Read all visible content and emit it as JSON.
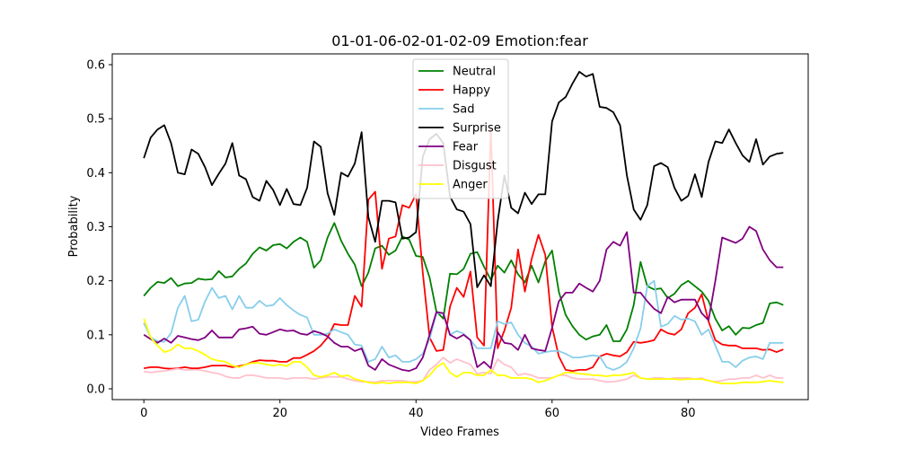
{
  "chart_data": {
    "type": "line",
    "title": "01-01-06-02-01-02-09 Emotion:fear",
    "xlabel": "Video Frames",
    "ylabel": "Probability",
    "xlim": [
      -4.65,
      97.65
    ],
    "ylim": [
      -0.02,
      0.62
    ],
    "xticks": [
      0,
      20,
      40,
      60,
      80
    ],
    "yticks": [
      0.0,
      0.1,
      0.2,
      0.3,
      0.4,
      0.5,
      0.6
    ],
    "ytick_labels": [
      "0.0",
      "0.1",
      "0.2",
      "0.3",
      "0.4",
      "0.5",
      "0.6"
    ],
    "grid": false,
    "legend_position": "top-center",
    "series": [
      {
        "name": "Neutral",
        "color": "#008000",
        "values": [
          0.172,
          0.187,
          0.198,
          0.196,
          0.205,
          0.19,
          0.195,
          0.196,
          0.204,
          0.202,
          0.203,
          0.218,
          0.206,
          0.208,
          0.222,
          0.232,
          0.25,
          0.262,
          0.256,
          0.266,
          0.268,
          0.26,
          0.272,
          0.28,
          0.272,
          0.224,
          0.238,
          0.28,
          0.307,
          0.274,
          0.25,
          0.23,
          0.19,
          0.215,
          0.26,
          0.265,
          0.248,
          0.256,
          0.282,
          0.276,
          0.246,
          0.244,
          0.206,
          0.143,
          0.13,
          0.213,
          0.212,
          0.222,
          0.25,
          0.253,
          0.226,
          0.202,
          0.228,
          0.215,
          0.238,
          0.212,
          0.197,
          0.228,
          0.197,
          0.236,
          0.256,
          0.18,
          0.137,
          0.116,
          0.1,
          0.091,
          0.097,
          0.1,
          0.118,
          0.088,
          0.088,
          0.11,
          0.155,
          0.235,
          0.19,
          0.184,
          0.186,
          0.168,
          0.176,
          0.192,
          0.2,
          0.19,
          0.18,
          0.163,
          0.13,
          0.108,
          0.116,
          0.1,
          0.113,
          0.112,
          0.118,
          0.122,
          0.158,
          0.16,
          0.155
        ]
      },
      {
        "name": "Happy",
        "color": "#ff0000",
        "values": [
          0.038,
          0.04,
          0.04,
          0.038,
          0.037,
          0.038,
          0.04,
          0.038,
          0.038,
          0.04,
          0.043,
          0.043,
          0.043,
          0.04,
          0.042,
          0.045,
          0.05,
          0.053,
          0.052,
          0.052,
          0.05,
          0.05,
          0.057,
          0.057,
          0.063,
          0.07,
          0.08,
          0.095,
          0.12,
          0.118,
          0.118,
          0.172,
          0.152,
          0.35,
          0.365,
          0.222,
          0.278,
          0.282,
          0.34,
          0.335,
          0.36,
          0.215,
          0.095,
          0.07,
          0.072,
          0.152,
          0.187,
          0.17,
          0.217,
          0.095,
          0.08,
          0.482,
          0.075,
          0.108,
          0.15,
          0.258,
          0.18,
          0.24,
          0.285,
          0.248,
          0.115,
          0.06,
          0.035,
          0.033,
          0.035,
          0.035,
          0.04,
          0.06,
          0.065,
          0.062,
          0.06,
          0.068,
          0.087,
          0.085,
          0.087,
          0.09,
          0.11,
          0.103,
          0.1,
          0.11,
          0.14,
          0.15,
          0.175,
          0.125,
          0.09,
          0.082,
          0.08,
          0.08,
          0.075,
          0.075,
          0.075,
          0.072,
          0.073,
          0.068,
          0.073
        ]
      },
      {
        "name": "Sad",
        "color": "#87ceeb",
        "values": [
          0.122,
          0.095,
          0.088,
          0.087,
          0.103,
          0.15,
          0.172,
          0.125,
          0.128,
          0.162,
          0.187,
          0.168,
          0.172,
          0.147,
          0.172,
          0.15,
          0.15,
          0.163,
          0.153,
          0.155,
          0.168,
          0.155,
          0.145,
          0.137,
          0.132,
          0.1,
          0.1,
          0.102,
          0.11,
          0.105,
          0.1,
          0.082,
          0.08,
          0.05,
          0.055,
          0.078,
          0.058,
          0.062,
          0.05,
          0.05,
          0.055,
          0.065,
          0.092,
          0.14,
          0.14,
          0.1,
          0.107,
          0.102,
          0.09,
          0.075,
          0.075,
          0.075,
          0.125,
          0.12,
          0.123,
          0.1,
          0.085,
          0.078,
          0.065,
          0.068,
          0.07,
          0.07,
          0.065,
          0.058,
          0.058,
          0.06,
          0.062,
          0.06,
          0.04,
          0.035,
          0.04,
          0.05,
          0.075,
          0.112,
          0.19,
          0.2,
          0.115,
          0.12,
          0.135,
          0.128,
          0.13,
          0.125,
          0.1,
          0.11,
          0.08,
          0.05,
          0.05,
          0.04,
          0.052,
          0.058,
          0.06,
          0.055,
          0.085,
          0.085,
          0.085
        ]
      },
      {
        "name": "Surprise",
        "color": "#000000",
        "values": [
          0.427,
          0.465,
          0.48,
          0.488,
          0.455,
          0.4,
          0.397,
          0.443,
          0.435,
          0.41,
          0.377,
          0.398,
          0.417,
          0.455,
          0.395,
          0.388,
          0.355,
          0.348,
          0.385,
          0.368,
          0.34,
          0.37,
          0.342,
          0.34,
          0.372,
          0.458,
          0.448,
          0.362,
          0.322,
          0.4,
          0.393,
          0.417,
          0.475,
          0.318,
          0.272,
          0.348,
          0.348,
          0.345,
          0.278,
          0.28,
          0.29,
          0.43,
          0.462,
          0.472,
          0.455,
          0.356,
          0.332,
          0.328,
          0.305,
          0.188,
          0.21,
          0.19,
          0.31,
          0.395,
          0.335,
          0.325,
          0.363,
          0.342,
          0.36,
          0.36,
          0.495,
          0.53,
          0.54,
          0.565,
          0.587,
          0.578,
          0.583,
          0.522,
          0.52,
          0.512,
          0.488,
          0.395,
          0.332,
          0.313,
          0.34,
          0.412,
          0.418,
          0.41,
          0.372,
          0.348,
          0.357,
          0.397,
          0.355,
          0.42,
          0.458,
          0.455,
          0.48,
          0.455,
          0.432,
          0.42,
          0.462,
          0.415,
          0.43,
          0.435,
          0.437
        ]
      },
      {
        "name": "Fear",
        "color": "#800080",
        "values": [
          0.1,
          0.092,
          0.085,
          0.093,
          0.085,
          0.098,
          0.095,
          0.092,
          0.09,
          0.095,
          0.108,
          0.095,
          0.095,
          0.095,
          0.11,
          0.112,
          0.115,
          0.102,
          0.1,
          0.105,
          0.11,
          0.107,
          0.108,
          0.102,
          0.1,
          0.107,
          0.103,
          0.097,
          0.085,
          0.078,
          0.078,
          0.07,
          0.075,
          0.043,
          0.035,
          0.055,
          0.045,
          0.04,
          0.035,
          0.033,
          0.038,
          0.058,
          0.1,
          0.142,
          0.14,
          0.1,
          0.093,
          0.1,
          0.09,
          0.04,
          0.05,
          0.038,
          0.105,
          0.085,
          0.083,
          0.072,
          0.1,
          0.075,
          0.072,
          0.07,
          0.113,
          0.162,
          0.178,
          0.178,
          0.195,
          0.187,
          0.18,
          0.2,
          0.258,
          0.272,
          0.265,
          0.29,
          0.178,
          0.178,
          0.162,
          0.148,
          0.14,
          0.17,
          0.16,
          0.165,
          0.165,
          0.165,
          0.14,
          0.127,
          0.2,
          0.28,
          0.275,
          0.27,
          0.278,
          0.3,
          0.292,
          0.258,
          0.238,
          0.225,
          0.225
        ]
      },
      {
        "name": "Disgust",
        "color": "#ffc0cb",
        "values": [
          0.032,
          0.03,
          0.032,
          0.033,
          0.035,
          0.037,
          0.035,
          0.035,
          0.035,
          0.033,
          0.03,
          0.028,
          0.023,
          0.02,
          0.02,
          0.025,
          0.025,
          0.023,
          0.02,
          0.02,
          0.02,
          0.018,
          0.02,
          0.02,
          0.02,
          0.018,
          0.02,
          0.022,
          0.022,
          0.022,
          0.018,
          0.015,
          0.013,
          0.013,
          0.012,
          0.015,
          0.015,
          0.015,
          0.015,
          0.013,
          0.013,
          0.015,
          0.035,
          0.045,
          0.058,
          0.048,
          0.055,
          0.05,
          0.045,
          0.028,
          0.03,
          0.028,
          0.055,
          0.045,
          0.04,
          0.025,
          0.028,
          0.025,
          0.02,
          0.02,
          0.02,
          0.025,
          0.025,
          0.02,
          0.018,
          0.018,
          0.018,
          0.015,
          0.013,
          0.013,
          0.015,
          0.018,
          0.025,
          0.02,
          0.018,
          0.02,
          0.02,
          0.018,
          0.02,
          0.02,
          0.02,
          0.018,
          0.02,
          0.015,
          0.013,
          0.015,
          0.018,
          0.018,
          0.02,
          0.02,
          0.025,
          0.02,
          0.025,
          0.02,
          0.02
        ]
      },
      {
        "name": "Anger",
        "color": "#ffff00",
        "values": [
          0.13,
          0.095,
          0.08,
          0.068,
          0.072,
          0.082,
          0.075,
          0.075,
          0.07,
          0.063,
          0.055,
          0.052,
          0.05,
          0.043,
          0.04,
          0.045,
          0.048,
          0.048,
          0.045,
          0.043,
          0.045,
          0.042,
          0.05,
          0.05,
          0.04,
          0.025,
          0.022,
          0.025,
          0.03,
          0.023,
          0.025,
          0.018,
          0.015,
          0.012,
          0.01,
          0.012,
          0.01,
          0.012,
          0.012,
          0.012,
          0.01,
          0.015,
          0.025,
          0.04,
          0.048,
          0.03,
          0.022,
          0.03,
          0.03,
          0.025,
          0.025,
          0.035,
          0.025,
          0.025,
          0.02,
          0.02,
          0.02,
          0.018,
          0.012,
          0.015,
          0.02,
          0.025,
          0.03,
          0.03,
          0.028,
          0.027,
          0.025,
          0.025,
          0.023,
          0.025,
          0.025,
          0.027,
          0.03,
          0.02,
          0.018,
          0.018,
          0.018,
          0.018,
          0.018,
          0.017,
          0.018,
          0.018,
          0.018,
          0.015,
          0.012,
          0.01,
          0.01,
          0.01,
          0.012,
          0.012,
          0.012,
          0.013,
          0.015,
          0.013,
          0.012
        ]
      }
    ]
  }
}
